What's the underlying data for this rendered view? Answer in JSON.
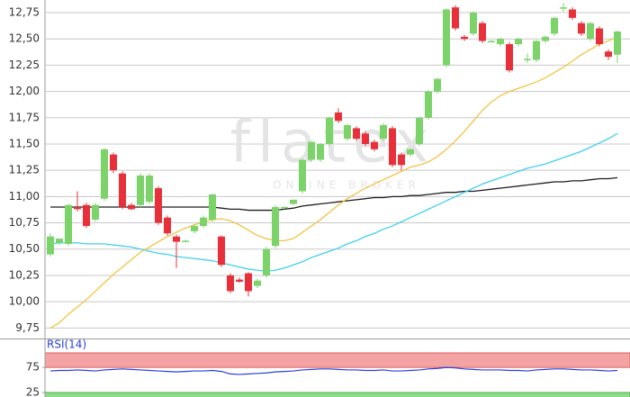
{
  "chart_data": [
    {
      "type": "candlestick",
      "watermark": [
        "flatex",
        "ONLINE BROKER"
      ],
      "ylim": [
        9.65,
        12.87
      ],
      "yticks": [
        {
          "value": 9.75,
          "label": "9,75"
        },
        {
          "value": 10.0,
          "label": "10,00"
        },
        {
          "value": 10.25,
          "label": "10,25"
        },
        {
          "value": 10.5,
          "label": "10,50"
        },
        {
          "value": 10.75,
          "label": "10,75"
        },
        {
          "value": 11.0,
          "label": "11,00"
        },
        {
          "value": 11.25,
          "label": "11,25"
        },
        {
          "value": 11.5,
          "label": "11,50"
        },
        {
          "value": 11.75,
          "label": "11,75"
        },
        {
          "value": 12.0,
          "label": "12,00"
        },
        {
          "value": 12.25,
          "label": "12,25"
        },
        {
          "value": 12.5,
          "label": "12,50"
        },
        {
          "value": 12.75,
          "label": "12,75"
        }
      ],
      "grid": true,
      "up_color": "#7bd36a",
      "down_color": "#e8303a",
      "open": [
        10.45,
        10.56,
        10.55,
        10.9,
        10.92,
        10.78,
        10.98,
        11.4,
        11.22,
        10.92,
        10.92,
        10.95,
        11.08,
        10.8,
        10.62,
        10.58,
        10.67,
        10.72,
        10.78,
        10.62,
        10.25,
        10.21,
        10.27,
        10.15,
        10.25,
        10.53,
        10.89,
        10.93,
        11.05,
        11.35,
        11.35,
        11.5,
        11.8,
        11.55,
        11.65,
        11.6,
        11.52,
        11.55,
        11.65,
        11.4,
        11.4,
        11.5,
        11.75,
        12.0,
        12.25,
        12.8,
        12.52,
        12.55,
        12.65,
        12.48,
        12.45,
        12.45,
        12.45,
        12.3,
        12.3,
        12.48,
        12.55,
        12.79,
        12.78,
        12.65,
        12.5,
        12.6,
        12.38,
        12.35
      ],
      "high": [
        10.65,
        10.6,
        10.93,
        11.05,
        10.94,
        10.94,
        11.46,
        11.42,
        11.24,
        10.94,
        11.22,
        11.22,
        11.1,
        10.82,
        10.64,
        10.59,
        10.74,
        10.82,
        11.03,
        10.63,
        10.27,
        10.23,
        10.28,
        10.22,
        10.52,
        10.92,
        10.91,
        10.97,
        11.36,
        11.53,
        11.51,
        11.76,
        11.84,
        11.69,
        11.67,
        11.62,
        11.54,
        11.7,
        11.67,
        11.42,
        11.46,
        11.76,
        12.01,
        12.13,
        12.79,
        12.82,
        12.54,
        12.76,
        12.67,
        12.49,
        12.51,
        12.47,
        12.51,
        12.36,
        12.49,
        12.53,
        12.71,
        12.84,
        12.8,
        12.67,
        12.66,
        12.62,
        12.4,
        12.58
      ],
      "low": [
        10.43,
        10.54,
        10.53,
        10.86,
        10.7,
        10.76,
        10.96,
        11.22,
        10.88,
        10.87,
        10.9,
        10.93,
        10.73,
        10.63,
        10.32,
        10.57,
        10.65,
        10.7,
        10.76,
        10.33,
        10.08,
        10.18,
        10.05,
        10.13,
        10.23,
        10.51,
        10.88,
        10.92,
        11.03,
        11.33,
        11.33,
        11.48,
        11.7,
        11.53,
        11.53,
        11.48,
        11.43,
        11.53,
        11.28,
        11.25,
        11.38,
        11.48,
        11.73,
        11.98,
        12.23,
        12.58,
        12.48,
        12.53,
        12.46,
        12.47,
        12.43,
        12.18,
        12.43,
        12.27,
        12.28,
        12.46,
        12.53,
        12.76,
        12.68,
        12.53,
        12.48,
        12.43,
        12.3,
        12.27
      ],
      "close": [
        10.62,
        10.6,
        10.92,
        10.88,
        10.72,
        10.92,
        11.45,
        11.25,
        10.9,
        10.88,
        11.2,
        11.2,
        10.75,
        10.65,
        10.57,
        10.58,
        10.72,
        10.8,
        11.02,
        10.35,
        10.1,
        10.19,
        10.1,
        10.2,
        10.5,
        10.9,
        10.9,
        10.97,
        11.35,
        11.52,
        11.5,
        11.75,
        11.72,
        11.68,
        11.55,
        11.5,
        11.45,
        11.68,
        11.3,
        11.3,
        11.45,
        11.75,
        12.0,
        12.12,
        12.78,
        12.6,
        12.5,
        12.75,
        12.48,
        12.48,
        12.5,
        12.2,
        12.5,
        12.31,
        12.48,
        12.52,
        12.7,
        12.8,
        12.7,
        12.55,
        12.65,
        12.45,
        12.33,
        12.57
      ],
      "lines": [
        {
          "color": "#1e1e1e",
          "values": [
            10.9,
            10.9,
            10.9,
            10.9,
            10.9,
            10.9,
            10.9,
            10.9,
            10.9,
            10.9,
            10.9,
            10.9,
            10.9,
            10.9,
            10.9,
            10.9,
            10.9,
            10.9,
            10.9,
            10.89,
            10.88,
            10.88,
            10.87,
            10.87,
            10.87,
            10.87,
            10.88,
            10.89,
            10.91,
            10.92,
            10.93,
            10.94,
            10.95,
            10.96,
            10.97,
            10.98,
            10.99,
            10.99,
            11.0,
            11.0,
            11.01,
            11.01,
            11.02,
            11.03,
            11.04,
            11.04,
            11.05,
            11.05,
            11.06,
            11.07,
            11.08,
            11.09,
            11.1,
            11.11,
            11.12,
            11.13,
            11.14,
            11.14,
            11.15,
            11.15,
            11.16,
            11.17,
            11.17,
            11.18
          ]
        },
        {
          "color": "#3fd0ee",
          "values": [
            10.55,
            10.56,
            10.56,
            10.56,
            10.55,
            10.55,
            10.55,
            10.54,
            10.53,
            10.52,
            10.5,
            10.48,
            10.46,
            10.45,
            10.43,
            10.42,
            10.41,
            10.4,
            10.39,
            10.37,
            10.35,
            10.33,
            10.31,
            10.3,
            10.29,
            10.3,
            10.32,
            10.35,
            10.38,
            10.42,
            10.45,
            10.48,
            10.51,
            10.55,
            10.58,
            10.62,
            10.65,
            10.69,
            10.72,
            10.76,
            10.8,
            10.84,
            10.88,
            10.92,
            10.96,
            11.0,
            11.04,
            11.08,
            11.12,
            11.15,
            11.18,
            11.21,
            11.24,
            11.27,
            11.29,
            11.31,
            11.34,
            11.37,
            11.4,
            11.43,
            11.47,
            11.51,
            11.55,
            11.6
          ]
        },
        {
          "color": "#f2c341",
          "values": [
            9.75,
            9.8,
            9.88,
            9.95,
            10.02,
            10.1,
            10.18,
            10.26,
            10.33,
            10.4,
            10.47,
            10.52,
            10.57,
            10.62,
            10.66,
            10.7,
            10.73,
            10.76,
            10.78,
            10.79,
            10.77,
            10.73,
            10.68,
            10.63,
            10.6,
            10.58,
            10.58,
            10.6,
            10.66,
            10.72,
            10.78,
            10.85,
            10.92,
            10.98,
            11.03,
            11.08,
            11.12,
            11.16,
            11.2,
            11.24,
            11.28,
            11.3,
            11.33,
            11.38,
            11.45,
            11.53,
            11.62,
            11.72,
            11.82,
            11.9,
            11.96,
            12.0,
            12.03,
            12.06,
            12.09,
            12.13,
            12.18,
            12.23,
            12.29,
            12.35,
            12.4,
            12.45,
            12.48,
            12.52
          ]
        }
      ]
    },
    {
      "type": "line",
      "title": "RSI(14)",
      "color": "#2a3fd6",
      "ylim": [
        16,
        104
      ],
      "yticks": [
        25,
        75
      ],
      "overbought": 75,
      "oversold": 25,
      "overbought_color": "#f3a3a3",
      "oversold_color": "#8edc86",
      "values": [
        68,
        69,
        69,
        70,
        69,
        68,
        70,
        71,
        72,
        71,
        70,
        69,
        68,
        67,
        66,
        67,
        68,
        68,
        69,
        67,
        62,
        61,
        62,
        63,
        64,
        66,
        67,
        68,
        70,
        71,
        72,
        72,
        71,
        70,
        70,
        69,
        69,
        70,
        68,
        68,
        69,
        70,
        72,
        73,
        75,
        74,
        72,
        71,
        70,
        70,
        70,
        69,
        69,
        68,
        70,
        71,
        72,
        72,
        71,
        70,
        70,
        69,
        68,
        69
      ]
    }
  ]
}
